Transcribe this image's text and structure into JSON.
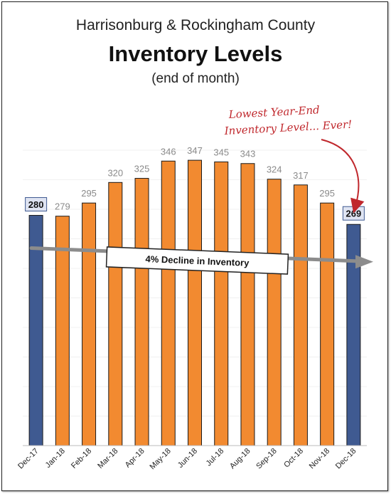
{
  "title_line1": "Harrisonburg & Rockingham County",
  "title_main": "Inventory Levels",
  "subtitle": "(end of month)",
  "annotation_note_lines": [
    "Lowest Year-End",
    "Inventory Level... Ever!"
  ],
  "trend_label": "4% Decline in Inventory",
  "colors": {
    "orange": "#f28a30",
    "blue": "#3f5a91",
    "note_red": "#c0282d",
    "label_gray": "#8a8a8a"
  },
  "chart_data": {
    "type": "bar",
    "title": "Inventory Levels",
    "categories": [
      "Dec-17",
      "Jan-18",
      "Feb-18",
      "Mar-18",
      "Apr-18",
      "May-18",
      "Jun-18",
      "Jul-18",
      "Aug-18",
      "Sep-18",
      "Oct-18",
      "Nov-18",
      "Dec-18"
    ],
    "values": [
      280,
      279,
      295,
      320,
      325,
      346,
      347,
      345,
      343,
      324,
      317,
      295,
      269
    ],
    "highlighted": [
      "Dec-17",
      "Dec-18"
    ],
    "ylim": [
      0,
      380
    ],
    "grid": true,
    "trend": {
      "from": 280,
      "to": 269
    }
  }
}
